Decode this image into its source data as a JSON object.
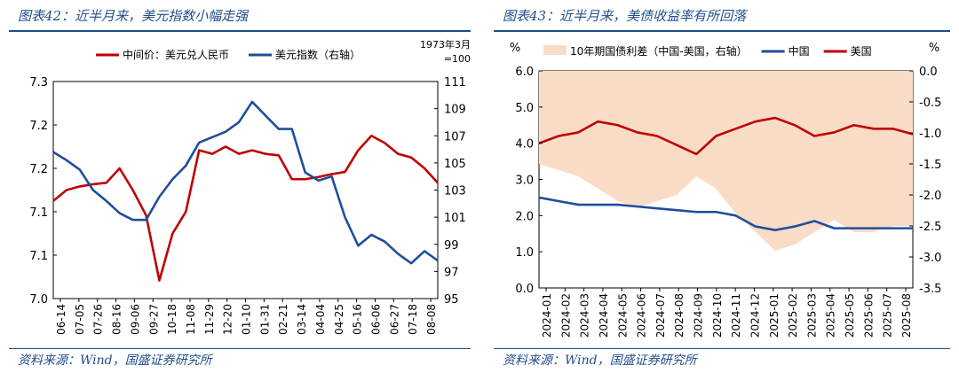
{
  "left": {
    "title": "图表42：近半月来，美元指数小幅走强",
    "source": "资料来源：Wind，国盛证券研究所",
    "note_line1": "1973年3月",
    "note_line2": "=100",
    "chart_data": {
      "type": "line",
      "title": "图表42：近半月来，美元指数小幅走强",
      "x_tick_labels": [
        "06-14",
        "07-05",
        "07-26",
        "08-16",
        "09-06",
        "09-27",
        "10-18",
        "11-08",
        "11-29",
        "12-20",
        "01-10",
        "01-31",
        "02-21",
        "03-14",
        "04-04",
        "04-25",
        "05-16",
        "06-06",
        "06-27",
        "07-18",
        "08-08"
      ],
      "y_left_tick_labels": [
        "7.0",
        "7.1",
        "7.1",
        "7.2",
        "7.2",
        "7.3"
      ],
      "y_left_range": [
        7.0,
        7.3
      ],
      "y_right_tick_labels": [
        "95",
        "97",
        "99",
        "101",
        "103",
        "105",
        "107",
        "109",
        "111"
      ],
      "y_right_range": [
        95,
        111
      ],
      "legend_position": "top",
      "series": [
        {
          "name": "中间价：美元兑人民币",
          "axis": "left",
          "color": "#c00000",
          "values": [
            7.135,
            7.15,
            7.155,
            7.158,
            7.16,
            7.18,
            7.15,
            7.115,
            7.025,
            7.09,
            7.12,
            7.205,
            7.2,
            7.21,
            7.2,
            7.205,
            7.2,
            7.198,
            7.165,
            7.165,
            7.168,
            7.172,
            7.175,
            7.205,
            7.225,
            7.215,
            7.2,
            7.195,
            7.18,
            7.16
          ]
        },
        {
          "name": "美元指数（右轴）",
          "axis": "right",
          "color": "#1f4e9a",
          "values": [
            105.8,
            105.2,
            104.5,
            103,
            102.2,
            101.3,
            100.8,
            100.8,
            102.5,
            103.8,
            104.8,
            106.5,
            106.9,
            107.3,
            108,
            109.5,
            108.5,
            107.5,
            107.5,
            104.3,
            103.7,
            104,
            101,
            98.9,
            99.7,
            99.2,
            98.3,
            97.6,
            98.5,
            97.8
          ]
        }
      ]
    }
  },
  "right": {
    "title": "图表43：近半月来，美债收益率有所回落",
    "source": "资料来源：Wind，国盛证券研究所",
    "unit_left": "%",
    "unit_right": "%",
    "chart_data": {
      "type": "line",
      "title": "图表43：近半月来，美债收益率有所回落",
      "x_tick_labels": [
        "2024-01",
        "2024-02",
        "2024-03",
        "2024-04",
        "2024-05",
        "2024-06",
        "2024-07",
        "2024-08",
        "2024-09",
        "2024-10",
        "2024-11",
        "2024-12",
        "2025-01",
        "2025-02",
        "2025-03",
        "2025-04",
        "2025-05",
        "2025-06",
        "2025-07",
        "2025-08"
      ],
      "y_left_tick_labels": [
        "0.0",
        "1.0",
        "2.0",
        "3.0",
        "4.0",
        "5.0",
        "6.0"
      ],
      "y_left_range": [
        0,
        6
      ],
      "y_right_tick_labels": [
        "-3.5",
        "-3.0",
        "-2.5",
        "-2.0",
        "-1.5",
        "-1.0",
        "-0.5",
        "0.0"
      ],
      "y_right_range": [
        -3.5,
        0
      ],
      "legend_position": "top",
      "series": [
        {
          "name": "10年期国债利差（中国-美国，右轴）",
          "axis": "right",
          "type": "area",
          "color": "#f9dcc6",
          "values": [
            -1.5,
            -1.6,
            -1.7,
            -1.9,
            -2.1,
            -2.2,
            -2.1,
            -2.0,
            -1.7,
            -1.9,
            -2.3,
            -2.6,
            -2.9,
            -2.8,
            -2.6,
            -2.4,
            -2.6,
            -2.6,
            -2.5,
            -2.5
          ]
        },
        {
          "name": "中国",
          "axis": "left",
          "color": "#1f4e9a",
          "values": [
            2.5,
            2.4,
            2.3,
            2.3,
            2.3,
            2.25,
            2.2,
            2.15,
            2.1,
            2.1,
            2.0,
            1.7,
            1.6,
            1.7,
            1.85,
            1.65,
            1.65,
            1.65,
            1.65,
            1.65
          ]
        },
        {
          "name": "美国",
          "axis": "left",
          "color": "#c00000",
          "values": [
            4.0,
            4.2,
            4.3,
            4.6,
            4.5,
            4.3,
            4.2,
            3.95,
            3.7,
            4.2,
            4.4,
            4.6,
            4.7,
            4.5,
            4.2,
            4.3,
            4.5,
            4.4,
            4.4,
            4.25
          ]
        }
      ]
    }
  }
}
